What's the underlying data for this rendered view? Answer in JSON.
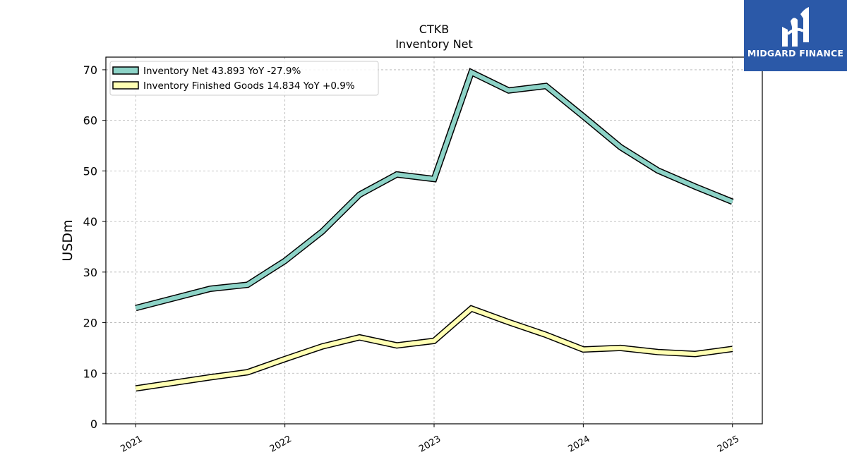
{
  "chart_data": {
    "type": "line",
    "title": "CTKB",
    "subtitle": "Inventory Net",
    "ylabel": "USDm",
    "xlabel": "",
    "ylim": [
      0,
      72.5
    ],
    "xlim": [
      2020.8,
      2025.2
    ],
    "yticks": [
      0,
      10,
      20,
      30,
      40,
      50,
      60,
      70
    ],
    "xticks": [
      {
        "value": 2021.0,
        "label": "2021"
      },
      {
        "value": 2022.0,
        "label": "2022"
      },
      {
        "value": 2023.0,
        "label": "2023"
      },
      {
        "value": 2024.0,
        "label": "2024"
      },
      {
        "value": 2025.0,
        "label": "2025"
      }
    ],
    "grid": true,
    "legend_position": "top-left",
    "series": [
      {
        "name": "Inventory Net",
        "legend_label": "Inventory Net  43.893 YoY -27.9%",
        "color": "#8dd3c7",
        "x": [
          2021.0,
          2021.5,
          2021.75,
          2022.0,
          2022.25,
          2022.5,
          2022.75,
          2023.0,
          2023.25,
          2023.5,
          2023.75,
          2024.0,
          2024.25,
          2024.5,
          2024.75,
          2025.0
        ],
        "values": [
          22.9,
          26.7,
          27.5,
          32.2,
          38.0,
          45.3,
          49.3,
          48.4,
          69.5,
          65.9,
          66.8,
          60.8,
          54.7,
          50.1,
          46.9,
          43.9
        ]
      },
      {
        "name": "Inventory Finished Goods",
        "legend_label": "Inventory Finished Goods  14.834 YoY +0.9%",
        "color": "#ffffb3",
        "x": [
          2021.0,
          2021.5,
          2021.75,
          2022.0,
          2022.25,
          2022.5,
          2022.75,
          2023.0,
          2023.25,
          2023.5,
          2023.75,
          2024.0,
          2024.25,
          2024.5,
          2024.75,
          2025.0
        ],
        "values": [
          7.0,
          9.2,
          10.2,
          12.8,
          15.3,
          17.1,
          15.5,
          16.4,
          22.8,
          20.1,
          17.6,
          14.7,
          15.0,
          14.2,
          13.8,
          14.8
        ]
      }
    ]
  },
  "logo": {
    "text": "MIDGARD FINANCE",
    "icon": "midgard-logo-icon"
  }
}
